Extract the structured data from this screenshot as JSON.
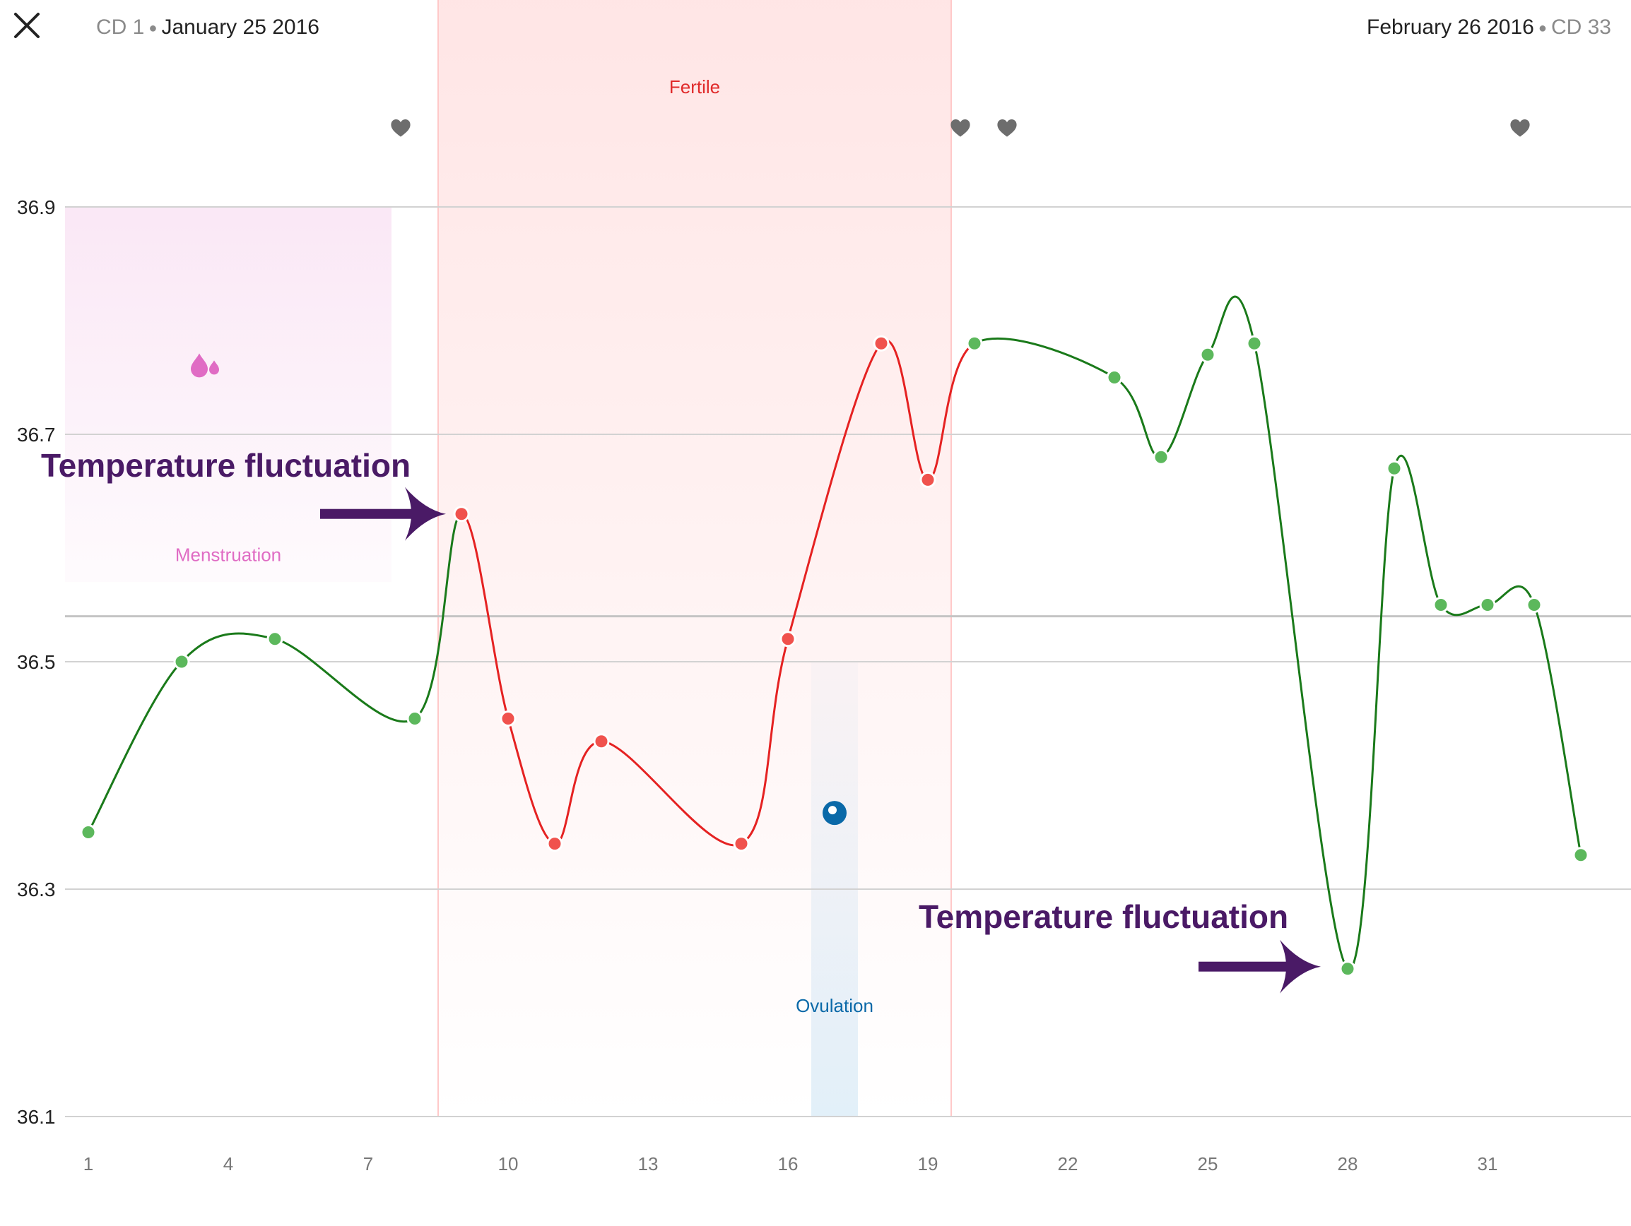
{
  "header": {
    "close_icon": "close-icon",
    "start": {
      "cycle_day": "CD 1",
      "date": "January 25 2016"
    },
    "end": {
      "date": "February 26 2016",
      "cycle_day": "CD 33"
    }
  },
  "chart_data": {
    "type": "line",
    "title": "",
    "xlabel": "",
    "ylabel": "",
    "xlim": [
      0.5,
      33.5
    ],
    "ylim": [
      36.1,
      36.9
    ],
    "y_ticks": [
      36.9,
      36.7,
      36.5,
      36.3,
      36.1
    ],
    "x_ticks": [
      1,
      4,
      7,
      10,
      13,
      16,
      19,
      22,
      25,
      28,
      31
    ],
    "grid": true,
    "coverline": 36.54,
    "colors": {
      "normal_line": "#1a7a1a",
      "normal_point": "#5cb85c",
      "fertile_line": "#e52222",
      "fertile_point": "#f0524d",
      "menstruation": "#e06cc4",
      "fertile_band": "#ff8a8a",
      "ovulation": "#0a69a8",
      "annotation": "#4a1a66",
      "intercourse": "#6d6d6d"
    },
    "points": [
      {
        "day": 1,
        "temp": 36.35
      },
      {
        "day": 3,
        "temp": 36.5
      },
      {
        "day": 5,
        "temp": 36.52
      },
      {
        "day": 8,
        "temp": 36.45
      },
      {
        "day": 9,
        "temp": 36.63
      },
      {
        "day": 10,
        "temp": 36.45
      },
      {
        "day": 11,
        "temp": 36.34
      },
      {
        "day": 12,
        "temp": 36.43
      },
      {
        "day": 15,
        "temp": 36.34
      },
      {
        "day": 16,
        "temp": 36.52
      },
      {
        "day": 18,
        "temp": 36.78
      },
      {
        "day": 19,
        "temp": 36.66
      },
      {
        "day": 20,
        "temp": 36.78
      },
      {
        "day": 23,
        "temp": 36.75
      },
      {
        "day": 24,
        "temp": 36.68
      },
      {
        "day": 25,
        "temp": 36.77
      },
      {
        "day": 26,
        "temp": 36.78
      },
      {
        "day": 28,
        "temp": 36.23
      },
      {
        "day": 29,
        "temp": 36.67
      },
      {
        "day": 30,
        "temp": 36.55
      },
      {
        "day": 31,
        "temp": 36.55
      },
      {
        "day": 32,
        "temp": 36.55
      },
      {
        "day": 33,
        "temp": 36.33
      }
    ],
    "fertile_window": {
      "label": "Fertile",
      "start_day": 8.5,
      "end_day": 19.5
    },
    "menstruation": {
      "label": "Menstruation",
      "start_day": 0.5,
      "end_day": 7.5,
      "icon": "blood-drops-icon"
    },
    "ovulation": {
      "label": "Ovulation",
      "day": 17,
      "icon": "ovulation-marker-icon"
    },
    "intercourse_days": [
      8,
      20,
      21,
      32
    ],
    "annotations": [
      {
        "text": "Temperature fluctuation",
        "target_day": 9
      },
      {
        "text": "Temperature fluctuation",
        "target_day": 28
      }
    ]
  }
}
